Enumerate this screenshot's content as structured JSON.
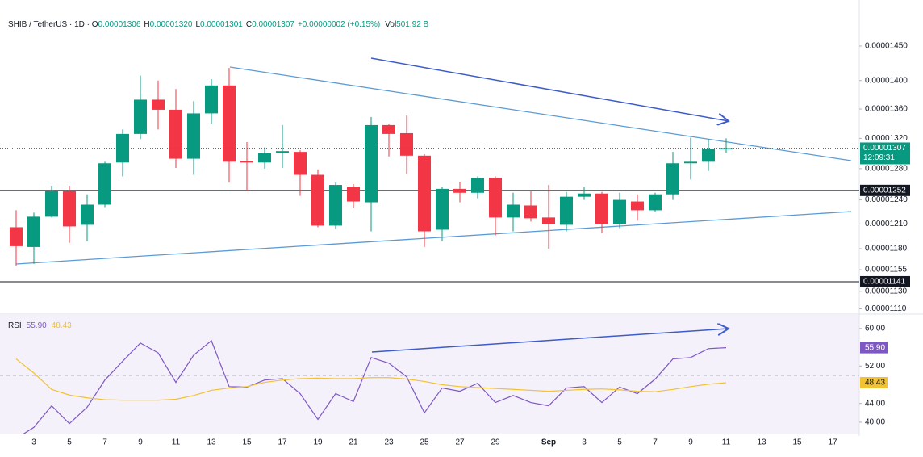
{
  "chart_data": [
    {
      "type": "candlestick",
      "header": {
        "symbol": "SHIB / TetherUS",
        "interval": "1D",
        "ohlc": [
          {
            "key": "O",
            "text": "0.00001306"
          },
          {
            "key": "H",
            "text": "0.00001320"
          },
          {
            "key": "L",
            "text": "0.00001301"
          },
          {
            "key": "C",
            "text": "0.00001307"
          }
        ],
        "change": "+0.00000002 (+0.15%)",
        "volume_key": "Vol",
        "volume": "501.92 B"
      },
      "categories": [
        null,
        "3",
        null,
        "5",
        null,
        "7",
        null,
        "9",
        null,
        "11",
        null,
        "13",
        null,
        "15",
        null,
        "17",
        null,
        "19",
        null,
        "21",
        null,
        "23",
        null,
        "25",
        null,
        "27",
        null,
        "29",
        null,
        null,
        "Sep",
        null,
        "3",
        null,
        "5",
        null,
        "7",
        null,
        "9",
        null,
        "11",
        null,
        "13",
        null,
        "15",
        null,
        "17"
      ],
      "open": [
        1.206e-05,
        1.182e-05,
        1.219e-05,
        1.251e-05,
        1.209e-05,
        1.234e-05,
        1.288e-05,
        1.326e-05,
        1.373e-05,
        1.359e-05,
        1.293e-05,
        1.354e-05,
        1.393e-05,
        1.29e-05,
        1.288e-05,
        1.301e-05,
        1.302e-05,
        1.272e-05,
        1.208e-05,
        1.257e-05,
        1.237e-05,
        1.338e-05,
        1.327e-05,
        1.297e-05,
        1.203e-05,
        1.254e-05,
        1.249e-05,
        1.268e-05,
        1.218e-05,
        1.233e-05,
        1.218e-05,
        1.209e-05,
        1.244e-05,
        1.248e-05,
        1.21e-05,
        1.238e-05,
        1.227e-05,
        1.247e-05,
        1.287e-05,
        1.289e-05,
        1.306e-05,
        null,
        null,
        null,
        null,
        null,
        null
      ],
      "high": [
        1.227e-05,
        1.224e-05,
        1.258e-05,
        1.258e-05,
        1.247e-05,
        1.289e-05,
        1.332e-05,
        1.407e-05,
        1.4e-05,
        1.388e-05,
        1.371e-05,
        1.402e-05,
        1.418e-05,
        1.315e-05,
        1.308e-05,
        1.338e-05,
        1.304e-05,
        1.279e-05,
        1.262e-05,
        1.26e-05,
        1.349e-05,
        1.34e-05,
        1.351e-05,
        1.299e-05,
        1.256e-05,
        1.263e-05,
        1.27e-05,
        1.27e-05,
        1.249e-05,
        1.251e-05,
        1.259e-05,
        1.25e-05,
        1.257e-05,
        1.25e-05,
        1.249e-05,
        1.247e-05,
        1.249e-05,
        1.302e-05,
        1.321e-05,
        1.319e-05,
        1.32e-05,
        null,
        null,
        null,
        null,
        null,
        null
      ],
      "low": [
        1.16e-05,
        1.162e-05,
        1.218e-05,
        1.187e-05,
        1.189e-05,
        1.231e-05,
        1.27e-05,
        1.319e-05,
        1.332e-05,
        1.281e-05,
        1.272e-05,
        1.34e-05,
        1.262e-05,
        1.251e-05,
        1.28e-05,
        1.281e-05,
        1.245e-05,
        1.206e-05,
        1.204e-05,
        1.23e-05,
        1.201e-05,
        1.296e-05,
        1.273e-05,
        1.182e-05,
        1.189e-05,
        1.237e-05,
        1.242e-05,
        1.196e-05,
        1.201e-05,
        1.213e-05,
        1.18e-05,
        1.201e-05,
        1.24e-05,
        1.199e-05,
        1.205e-05,
        1.214e-05,
        1.225e-05,
        1.24e-05,
        1.266e-05,
        1.277e-05,
        1.301e-05,
        null,
        null,
        null,
        null,
        null,
        null
      ],
      "close": [
        1.183e-05,
        1.219e-05,
        1.251e-05,
        1.207e-05,
        1.234e-05,
        1.287e-05,
        1.326e-05,
        1.373e-05,
        1.359e-05,
        1.293e-05,
        1.354e-05,
        1.393e-05,
        1.289e-05,
        1.288e-05,
        1.3e-05,
        1.303e-05,
        1.272e-05,
        1.208e-05,
        1.259e-05,
        1.238e-05,
        1.338e-05,
        1.326e-05,
        1.297e-05,
        1.201e-05,
        1.254e-05,
        1.249e-05,
        1.268e-05,
        1.218e-05,
        1.234e-05,
        1.217e-05,
        1.21e-05,
        1.244e-05,
        1.248e-05,
        1.21e-05,
        1.24e-05,
        1.227e-05,
        1.247e-05,
        1.287e-05,
        1.289e-05,
        1.306e-05,
        1.307e-05,
        null,
        null,
        null,
        null,
        null,
        null
      ],
      "up_color": "#089981",
      "down_color": "#f23645",
      "log": true,
      "ylim": [
        1.105e-05,
        1.507e-05
      ],
      "yticks": [
        {
          "value": 1.11e-05,
          "label": "0.00001110"
        },
        {
          "value": 1.13e-05,
          "label": "0.00001130"
        },
        1.155e-05,
        {
          "value": 1.18e-05,
          "label": "0.00001180"
        },
        {
          "value": 1.21e-05,
          "label": "0.00001210"
        },
        {
          "value": 1.24e-05,
          "label": "0.00001240"
        },
        {
          "value": 1.28e-05,
          "label": "0.00001280"
        },
        {
          "value": 1.32e-05,
          "label": "0.00001320"
        },
        {
          "value": 1.36e-05,
          "label": "0.00001360"
        },
        {
          "value": 1.4e-05,
          "label": "0.00001400"
        },
        {
          "value": 1.45e-05,
          "label": "0.00001450"
        }
      ],
      "last_price": 1.307e-05,
      "countdown": "12:09:31",
      "levels": [
        1.252e-05,
        1.141e-05
      ]
    },
    {
      "type": "line",
      "title": "RSI",
      "series": [
        {
          "color": "#7e57c2",
          "last_label": "55.90",
          "values": [
            36.5,
            38.9,
            43.5,
            39.7,
            43.2,
            49.0,
            53.0,
            56.9,
            54.8,
            48.5,
            54.3,
            57.4,
            47.6,
            47.5,
            49.0,
            49.3,
            46.1,
            40.6,
            46.1,
            44.4,
            53.8,
            52.6,
            49.7,
            42.0,
            47.3,
            46.6,
            48.3,
            44.2,
            45.7,
            44.2,
            43.5,
            47.3,
            47.6,
            44.2,
            47.5,
            46.1,
            49.2,
            53.5,
            53.8,
            55.7,
            55.9,
            null,
            null,
            null,
            null,
            null,
            null
          ]
        },
        {
          "color": "#f2c232",
          "last_label": "48.43",
          "values": [
            53.5,
            50.5,
            47.0,
            45.8,
            45.2,
            44.8,
            44.7,
            44.7,
            44.7,
            44.9,
            45.7,
            46.8,
            47.3,
            47.6,
            48.5,
            49.0,
            49.3,
            49.4,
            49.3,
            49.3,
            49.5,
            49.5,
            49.2,
            48.7,
            48.0,
            47.6,
            47.4,
            47.2,
            47.0,
            46.8,
            46.6,
            46.8,
            47.0,
            47.1,
            46.9,
            46.6,
            46.5,
            47.0,
            47.6,
            48.1,
            48.43,
            null,
            null,
            null,
            null,
            null,
            null
          ]
        }
      ],
      "ylim": [
        37.4,
        62.9
      ],
      "yticks": [
        {
          "value": 40,
          "label": "40.00"
        },
        {
          "value": 44,
          "label": "44.00"
        },
        {
          "value": 52,
          "label": "52.00"
        },
        {
          "value": 60,
          "label": "60.00"
        }
      ],
      "midline": 50
    }
  ]
}
